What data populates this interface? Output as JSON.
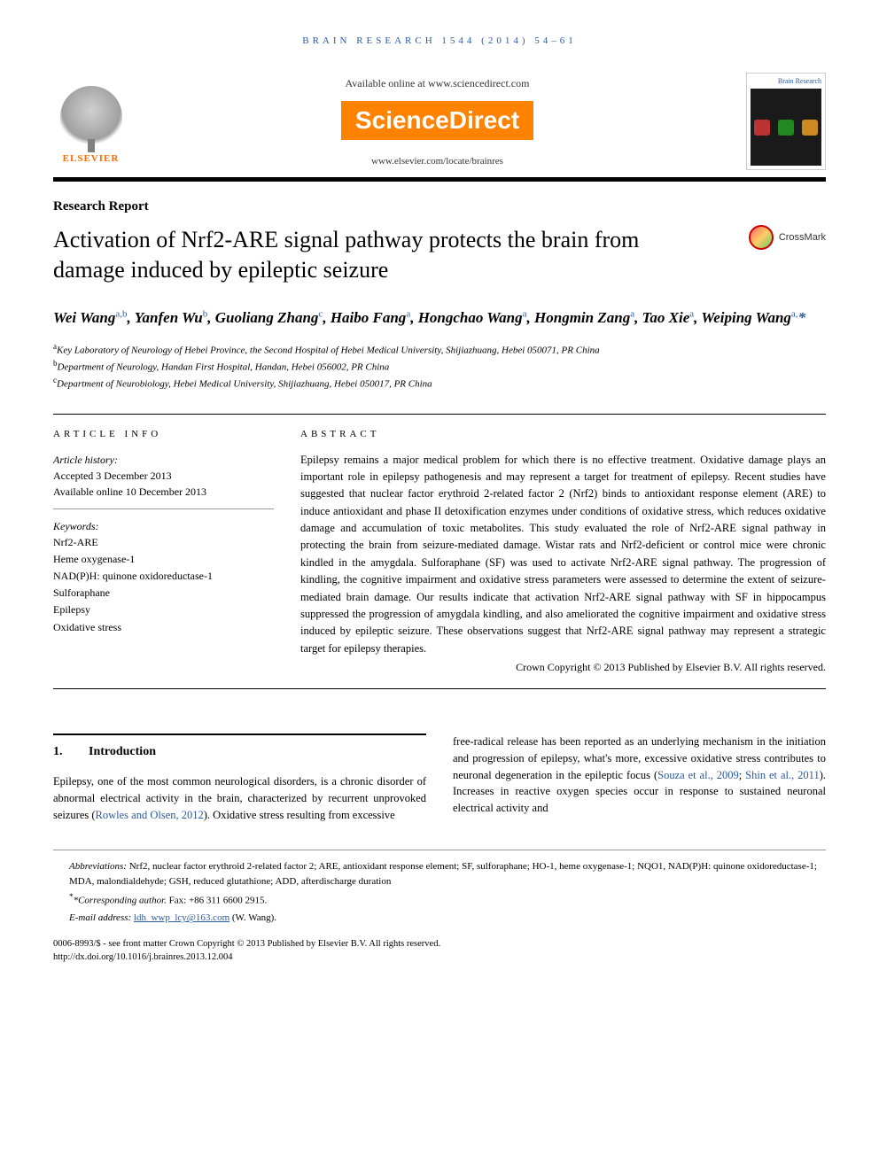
{
  "running_head": "BRAIN RESEARCH 1544 (2014) 54–61",
  "masthead": {
    "elsevier": "ELSEVIER",
    "available": "Available online at www.sciencedirect.com",
    "sciencedirect": "ScienceDirect",
    "journal_url": "www.elsevier.com/locate/brainres",
    "cover_title": "Brain Research",
    "cover_dots": [
      "#bb3333",
      "#228822",
      "#cc8822"
    ]
  },
  "article_type": "Research Report",
  "title": "Activation of Nrf2-ARE signal pathway protects the brain from damage induced by epileptic seizure",
  "crossmark": "CrossMark",
  "authors_html": "Wei Wang<sup>a,b</sup>, Yanfen Wu<sup>b</sup>, Guoliang Zhang<sup>c</sup>, Haibo Fang<sup>a</sup>, Hongchao Wang<sup>a</sup>, Hongmin Zang<sup>a</sup>, Tao Xie<sup>a</sup>, Weiping Wang<sup>a,</sup><span class='corr'>*</span>",
  "affiliations": [
    {
      "marker": "a",
      "text": "Key Laboratory of Neurology of Hebei Province, the Second Hospital of Hebei Medical University, Shijiazhuang, Hebei 050071, PR China"
    },
    {
      "marker": "b",
      "text": "Department of Neurology, Handan First Hospital, Handan, Hebei 056002, PR China"
    },
    {
      "marker": "c",
      "text": "Department of Neurobiology, Hebei Medical University, Shijiazhuang, Hebei 050017, PR China"
    }
  ],
  "info": {
    "heading": "ARTICLE INFO",
    "history_label": "Article history:",
    "accepted": "Accepted 3 December 2013",
    "online": "Available online 10 December 2013",
    "keywords_label": "Keywords:",
    "keywords": [
      "Nrf2-ARE",
      "Heme oxygenase-1",
      "NAD(P)H: quinone oxidoreductase-1",
      "Sulforaphane",
      "Epilepsy",
      "Oxidative stress"
    ]
  },
  "abstract": {
    "heading": "ABSTRACT",
    "text": "Epilepsy remains a major medical problem for which there is no effective treatment. Oxidative damage plays an important role in epilepsy pathogenesis and may represent a target for treatment of epilepsy. Recent studies have suggested that nuclear factor erythroid 2-related factor 2 (Nrf2) binds to antioxidant response element (ARE) to induce antioxidant and phase II detoxification enzymes under conditions of oxidative stress, which reduces oxidative damage and accumulation of toxic metabolites. This study evaluated the role of Nrf2-ARE signal pathway in protecting the brain from seizure-mediated damage. Wistar rats and Nrf2-deficient or control mice were chronic kindled in the amygdala. Sulforaphane (SF) was used to activate Nrf2-ARE signal pathway. The progression of kindling, the cognitive impairment and oxidative stress parameters were assessed to determine the extent of seizure-mediated brain damage. Our results indicate that activation Nrf2-ARE signal pathway with SF in hippocampus suppressed the progression of amygdala kindling, and also ameliorated the cognitive impairment and oxidative stress induced by epileptic seizure. These observations suggest that Nrf2-ARE signal pathway may represent a strategic target for epilepsy therapies.",
    "copyright": "Crown Copyright © 2013 Published by Elsevier B.V. All rights reserved."
  },
  "section1": {
    "num": "1.",
    "title": "Introduction",
    "left_para": "Epilepsy, one of the most common neurological disorders, is a chronic disorder of abnormal electrical activity in the brain, characterized by recurrent unprovoked seizures (",
    "left_cite": "Rowles and Olsen, 2012",
    "left_after": "). Oxidative stress resulting from excessive",
    "right_para_1": "free-radical release has been reported as an underlying mechanism in the initiation and progression of epilepsy, what's more, excessive oxidative stress contributes to neuronal degeneration in the epileptic focus (",
    "right_cite_1": "Souza et al., 2009",
    "right_sep": "; ",
    "right_cite_2": "Shin et al., 2011",
    "right_after": "). Increases in reactive oxygen species occur in response to sustained neuronal electrical activity and"
  },
  "footer": {
    "abbrev_label": "Abbreviations:",
    "abbrev_text": " Nrf2,  nuclear factor erythroid 2-related factor 2; ARE,  antioxidant response element; SF,  sulforaphane; HO-1,  heme oxygenase-1; NQO1,  NAD(P)H: quinone oxidoreductase-1; MDA,  malondialdehyde; GSH,  reduced glutathione; ADD,  afterdischarge duration",
    "corr_label": "*Corresponding author.",
    "corr_text": " Fax: +86 311 6600 2915.",
    "email_label": "E-mail address:",
    "email": "ldh_wwp_lcy@163.com",
    "email_name": " (W. Wang).",
    "issn": "0006-8993/$ - see front matter Crown Copyright © 2013 Published by Elsevier B.V. All rights reserved.",
    "doi": "http://dx.doi.org/10.1016/j.brainres.2013.12.004"
  },
  "colors": {
    "link": "#2c5aa0",
    "orange": "#ff8200"
  }
}
